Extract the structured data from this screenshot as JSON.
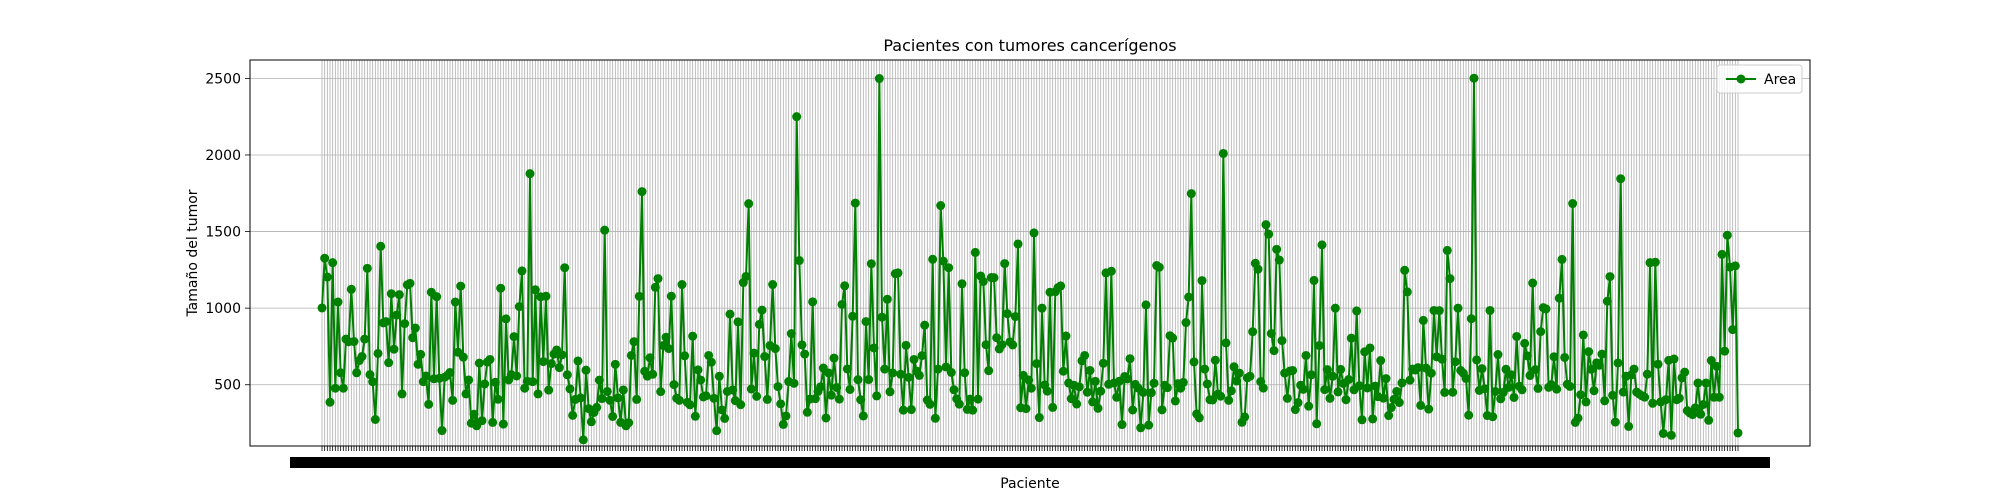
{
  "chart_data": {
    "type": "line",
    "title": "Pacientes con tumores cancerígenos",
    "xlabel": "Paciente",
    "ylabel": "Tamaño del tumor",
    "ylim": [
      100,
      2620
    ],
    "yticks": [
      500,
      1000,
      1500,
      2000,
      2500
    ],
    "grid": true,
    "legend_position": "top-right",
    "series": [
      {
        "name": "Area",
        "color": "#008000",
        "marker": "circle",
        "values": [
          1001,
          1326,
          1203,
          386,
          1297,
          477,
          1040,
          578,
          477,
          798,
          781,
          1123,
          782,
          578,
          658,
          684,
          798,
          1260,
          566,
          520,
          273,
          704,
          1404,
          904,
          912,
          644,
          1094,
          732,
          955,
          1088,
          440,
          899,
          1152,
          1162,
          807,
          870,
          633,
          698,
          520,
          557,
          372,
          1104,
          539,
          1075,
          542,
          201,
          549,
          561,
          580,
          398,
          1040,
          712,
          1144,
          680,
          440,
          531,
          249,
          307,
          232,
          641,
          265,
          505,
          648,
          665,
          254,
          516,
          405,
          1130,
          243,
          930,
          532,
          566,
          814,
          557,
          1010,
          1243,
          477,
          522,
          1878,
          520,
          1120,
          440,
          1074,
          651,
          1078,
          465,
          638,
          700,
          727,
          612,
          695,
          1264,
          565,
          473,
          300,
          404,
          655,
          414,
          140,
          595,
          344,
          258,
          319,
          352,
          530,
          410,
          1509,
          456,
          398,
          293,
          633,
          414,
          254,
          466,
          232,
          252,
          691,
          781,
          404,
          1077,
          1761,
          588,
          556,
          676,
          568,
          1136,
          1193,
          455,
          756,
          810,
          736,
          1078,
          501,
          412,
          398,
          1154,
          689,
          385,
          369,
          817,
          294,
          597,
          531,
          420,
          428,
          691,
          647,
          411,
          200,
          555,
          335,
          280,
          456,
          961,
          466,
          396,
          910,
          370,
          1167,
          1207,
          1682,
          472,
          706,
          424,
          894,
          987,
          684,
          404,
          756,
          1154,
          736,
          488,
          375,
          241,
          296,
          521,
          834,
          509,
          2250,
          1311,
          760,
          700,
          320,
          406,
          1041,
          409,
          456,
          487,
          609,
          283,
          577,
          432,
          674,
          482,
          406,
          1024,
          1146,
          603,
          469,
          947,
          1686,
          533,
          402,
          296,
          912,
          534,
          1290,
          740,
          427,
          2499,
          941,
          602,
          1058,
          454,
          577,
          1225,
          1230,
          568,
          334,
          757,
          548,
          338,
          665,
          589,
          561,
          690,
          889,
          400,
          372,
          1319,
          281,
          602,
          1670,
          1307,
          616,
          1264,
          580,
          467,
          408,
          373,
          1159,
          578,
          339,
          406,
          334,
          1364,
          406,
          1210,
          1174,
          761,
          592,
          1200,
          1199,
          807,
          734,
          761,
          1291,
          964,
          780,
          760,
          945,
          1419,
          350,
          561,
          344,
          531,
          477,
          1491,
          638,
          286,
          1000,
          498,
          458,
          1104,
          352,
          1107,
          1134,
          1145,
          588,
          818,
          511,
          409,
          496,
          374,
          486,
          656,
          691,
          451,
          593,
          388,
          522,
          346,
          458,
          640,
          1230,
          503,
          1241,
          511,
          418,
          523,
          240,
          554,
          538,
          670,
          335,
          502,
          479,
          219,
          450,
          1021,
          236,
          448,
          510,
          1278,
          1267,
          336,
          496,
          481,
          820,
          805,
          394,
          507,
          477,
          515,
          906,
          1072,
          1748,
          649,
          309,
          284,
          1180,
          602,
          505,
          402,
          401,
          660,
          439,
          425,
          2010,
          773,
          398,
          460,
          617,
          524,
          576,
          255,
          290,
          545,
          555,
          846,
          1293,
          1254,
          520,
          478,
          1545,
          1483,
          834,
          723,
          1384,
          1314,
          788,
          576,
          411,
          590,
          593,
          338,
          383,
          497,
          470,
          691,
          360,
          565,
          1181,
          245,
          756,
          1413,
          468,
          599,
          411,
          555,
          1000,
          453,
          600,
          508,
          402,
          534,
          804,
          467,
          982,
          493,
          271,
          715,
          479,
          740,
          277,
          491,
          422,
          658,
          412,
          540,
          299,
          351,
          404,
          456,
          384,
          512,
          1247,
          1106,
          530,
          602,
          596,
          612,
          365,
          920,
          609,
          341,
          575,
          985,
          682,
          984,
          667,
          450,
          1377,
          1193,
          451,
          650,
          1000,
          593,
          575,
          541,
          301,
          931,
          2501,
          662,
          463,
          605,
          474,
          299,
          985,
          291,
          456,
          697,
          408,
          450,
          601,
          483,
          565,
          417,
          815,
          490,
          467,
          770,
          688,
          560,
          1164,
          599,
          476,
          847,
          1003,
          995,
          483,
          501,
          683,
          471,
          1065,
          1318,
          678,
          503,
          489,
          1683,
          254,
          282,
          435,
          825,
          388,
          716,
          601,
          461,
          643,
          627,
          700,
          395,
          1045,
          1206,
          431,
          256,
          642,
          1845,
          452,
          555,
          228,
          564,
          602,
          452,
          439,
          428,
          419,
          569,
          1297,
          379,
          1300,
          634,
          388,
          182,
          403,
          659,
          170,
          668,
          402,
          412,
          545,
          582,
          331,
          315,
          305,
          349,
          511,
          307,
          371,
          511,
          268,
          658,
          418,
          620,
          418,
          1351,
          719,
          1476,
          1268,
          860,
          1276,
          185
        ]
      }
    ]
  }
}
